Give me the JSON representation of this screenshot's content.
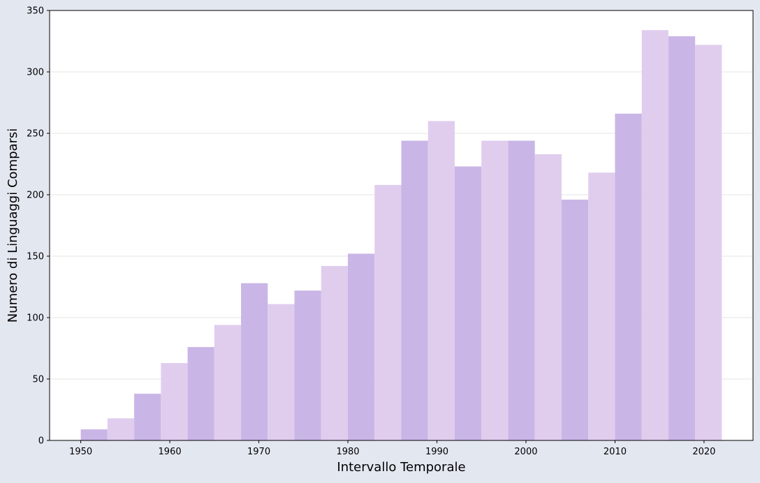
{
  "chart_data": {
    "type": "bar",
    "title": "",
    "xlabel": "Intervallo Temporale",
    "ylabel": "Numero di Linguaggi Comparsi",
    "xlim": [
      1946.5,
      2025.5
    ],
    "ylim": [
      0,
      350
    ],
    "bin_width": 3,
    "x_ticks": [
      1950,
      1960,
      1970,
      1980,
      1990,
      2000,
      2010,
      2020
    ],
    "y_ticks": [
      0,
      50,
      100,
      150,
      200,
      250,
      300,
      350
    ],
    "grid": "horizontal",
    "legend": "none",
    "colors": {
      "bar_dark": "#c9b6e6",
      "bar_light": "#e0cdee",
      "plot_background": "#ffffff",
      "figure_background": "#e3e7f0",
      "grid": "#e6e6e6"
    },
    "bins": [
      {
        "start": 1950,
        "end": 1953,
        "value": 9
      },
      {
        "start": 1953,
        "end": 1956,
        "value": 18
      },
      {
        "start": 1956,
        "end": 1959,
        "value": 38
      },
      {
        "start": 1959,
        "end": 1962,
        "value": 63
      },
      {
        "start": 1962,
        "end": 1965,
        "value": 76
      },
      {
        "start": 1965,
        "end": 1968,
        "value": 94
      },
      {
        "start": 1968,
        "end": 1971,
        "value": 128
      },
      {
        "start": 1971,
        "end": 1974,
        "value": 111
      },
      {
        "start": 1974,
        "end": 1977,
        "value": 122
      },
      {
        "start": 1977,
        "end": 1980,
        "value": 142
      },
      {
        "start": 1980,
        "end": 1983,
        "value": 152
      },
      {
        "start": 1983,
        "end": 1986,
        "value": 208
      },
      {
        "start": 1986,
        "end": 1989,
        "value": 244
      },
      {
        "start": 1989,
        "end": 1992,
        "value": 260
      },
      {
        "start": 1992,
        "end": 1995,
        "value": 223
      },
      {
        "start": 1995,
        "end": 1998,
        "value": 244
      },
      {
        "start": 1998,
        "end": 2001,
        "value": 244
      },
      {
        "start": 2001,
        "end": 2004,
        "value": 233
      },
      {
        "start": 2004,
        "end": 2007,
        "value": 196
      },
      {
        "start": 2007,
        "end": 2010,
        "value": 218
      },
      {
        "start": 2010,
        "end": 2013,
        "value": 266
      },
      {
        "start": 2013,
        "end": 2016,
        "value": 334
      },
      {
        "start": 2016,
        "end": 2019,
        "value": 329
      },
      {
        "start": 2019,
        "end": 2022,
        "value": 322
      }
    ]
  }
}
